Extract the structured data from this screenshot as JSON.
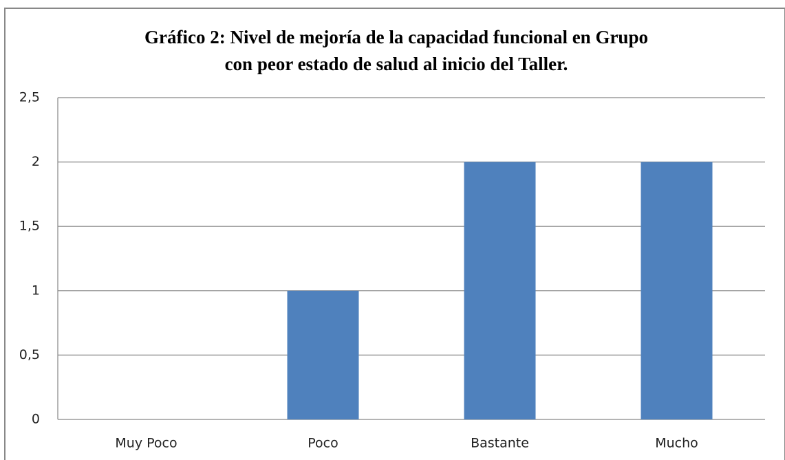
{
  "chart_data": {
    "type": "bar",
    "title": [
      "Gráfico 2: Nivel de mejoría de la capacidad funcional en Grupo",
      "con peor estado de salud al inicio del Taller."
    ],
    "categories": [
      "Muy Poco",
      "Poco",
      "Bastante",
      "Mucho"
    ],
    "values": [
      0,
      1,
      2,
      2
    ],
    "color": "#4f81bd",
    "ylim": [
      0,
      2.5
    ],
    "yticks": [
      0,
      {
        "value": 0.5,
        "label": "0,5"
      },
      1,
      {
        "value": 1.5,
        "label": "1,5"
      },
      2,
      {
        "value": 2.5,
        "label": "2,5"
      }
    ],
    "grid": true
  }
}
